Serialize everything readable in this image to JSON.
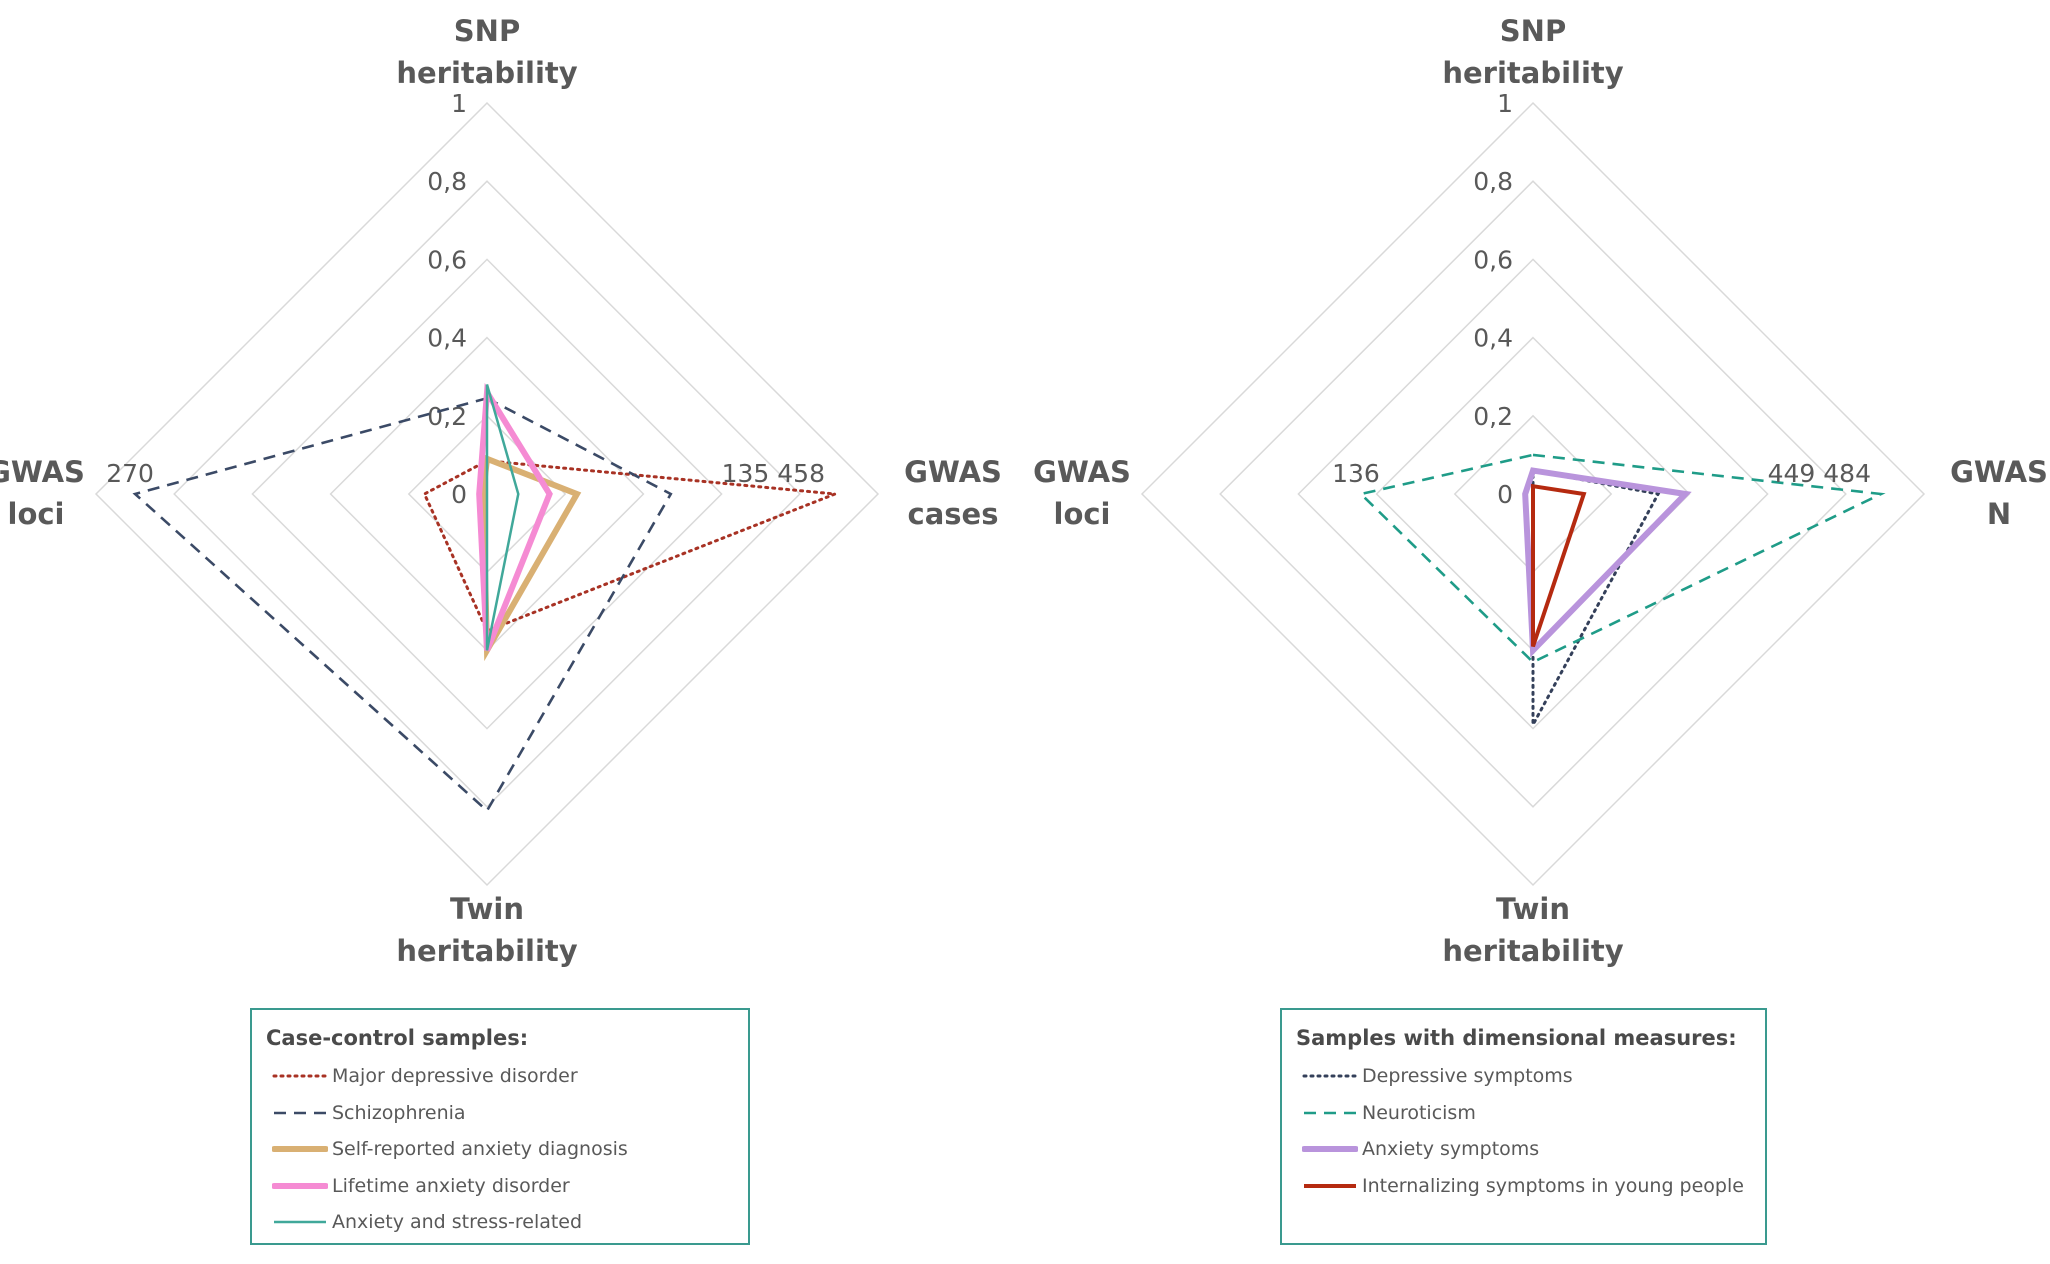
{
  "chart_data": [
    {
      "type": "radar",
      "axes": [
        "SNP heritability",
        "GWAS cases",
        "Twin heritability",
        "GWAS loci"
      ],
      "axis_title_lines": [
        [
          "SNP",
          "heritability"
        ],
        [
          "GWAS",
          "cases"
        ],
        [
          "Twin",
          "heritability"
        ],
        [
          "GWAS",
          "loci"
        ]
      ],
      "radial_ticks": [
        "0",
        "0,2",
        "0,4",
        "0,6",
        "0,8",
        "1"
      ],
      "rlim": [
        0,
        1
      ],
      "grid": true,
      "value_labels": {
        "GWAS cases": "135 458",
        "GWAS loci": "270"
      },
      "legend": {
        "title": "Case-control samples:",
        "placement": "bottom"
      },
      "series": [
        {
          "name": "Major depressive disorder",
          "color": "#a83224",
          "style": "dotted",
          "values": [
            0.085,
            0.89,
            0.35,
            0.16
          ]
        },
        {
          "name": "Schizophrenia",
          "color": "#3b4a66",
          "style": "dashed",
          "values": [
            0.245,
            0.47,
            0.81,
            0.9
          ]
        },
        {
          "name": "Self-reported anxiety diagnosis",
          "color": "#d9b073",
          "style": "thick",
          "values": [
            0.09,
            0.23,
            0.4,
            0.01
          ]
        },
        {
          "name": "Lifetime anxiety disorder",
          "color": "#f58bd3",
          "style": "thick",
          "values": [
            0.26,
            0.16,
            0.4,
            0.02
          ]
        },
        {
          "name": "Anxiety and stress-related",
          "color": "#40a89a",
          "style": "solid",
          "values": [
            0.28,
            0.08,
            0.4,
            0.0
          ]
        }
      ]
    },
    {
      "type": "radar",
      "axes": [
        "SNP heritability",
        "GWAS N",
        "Twin heritability",
        "GWAS loci"
      ],
      "axis_title_lines": [
        [
          "SNP",
          "heritability"
        ],
        [
          "GWAS",
          "N"
        ],
        [
          "Twin",
          "heritability"
        ],
        [
          "GWAS",
          "loci"
        ]
      ],
      "radial_ticks": [
        "0",
        "0,2",
        "0,4",
        "0,6",
        "0,8",
        "1"
      ],
      "rlim": [
        0,
        1
      ],
      "grid": true,
      "value_labels": {
        "GWAS N": "449 484",
        "GWAS loci": "136"
      },
      "legend": {
        "title": "Samples with dimensional measures:",
        "placement": "bottom"
      },
      "series": [
        {
          "name": "Depressive symptoms",
          "color": "#34405a",
          "style": "dotted",
          "values": [
            0.06,
            0.32,
            0.59,
            0.0
          ]
        },
        {
          "name": "Neuroticism",
          "color": "#1f9c88",
          "style": "dashed",
          "values": [
            0.1,
            0.89,
            0.43,
            0.44
          ]
        },
        {
          "name": "Anxiety symptoms",
          "color": "#b994dc",
          "style": "thick",
          "values": [
            0.06,
            0.39,
            0.4,
            0.02
          ]
        },
        {
          "name": "Internalizing symptoms in young people",
          "color": "#b52a10",
          "style": "medium",
          "values": [
            0.02,
            0.13,
            0.39,
            0.0
          ]
        }
      ]
    }
  ]
}
